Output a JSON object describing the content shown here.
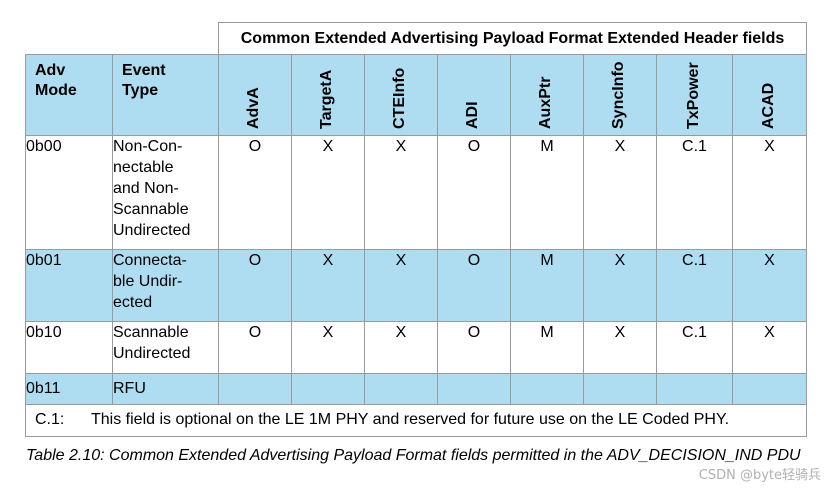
{
  "table": {
    "group_header": "Common Extended Advertising Payload Format Extended Header fields",
    "col_adv_mode": [
      "Adv",
      "Mode"
    ],
    "col_event_type": [
      "Event",
      "Type"
    ],
    "field_columns": [
      "AdvA",
      "TargetA",
      "CTEInfo",
      "ADI",
      "AuxPtr",
      "SyncInfo",
      "TxPower",
      "ACAD"
    ],
    "rows": [
      {
        "mode": "0b00",
        "event_type": "Non-Con-\nnectable\nand Non-\nScannable\nUndirected",
        "values": [
          "O",
          "X",
          "X",
          "O",
          "M",
          "X",
          "C.1",
          "X"
        ]
      },
      {
        "mode": "0b01",
        "event_type": "Connecta-\nble Undir-\nected",
        "values": [
          "O",
          "X",
          "X",
          "O",
          "M",
          "X",
          "C.1",
          "X"
        ]
      },
      {
        "mode": "0b10",
        "event_type": "Scannable\nUndirected",
        "values": [
          "O",
          "X",
          "X",
          "O",
          "M",
          "X",
          "C.1",
          "X"
        ]
      },
      {
        "mode": "0b11",
        "event_type": "RFU",
        "values": [
          "",
          "",
          "",
          "",
          "",
          "",
          "",
          ""
        ]
      }
    ],
    "note_label": "C.1:",
    "note_text": "This field is optional on the LE 1M PHY and reserved for future use on the LE Coded PHY."
  },
  "caption": "Table 2.10: Common Extended Advertising Payload Format fields permitted in the ADV_DECISION_IND PDU",
  "watermark": "CSDN @byte轻骑兵",
  "colors": {
    "header_blue": "#aedcf0",
    "border": "#9a9a9a"
  }
}
